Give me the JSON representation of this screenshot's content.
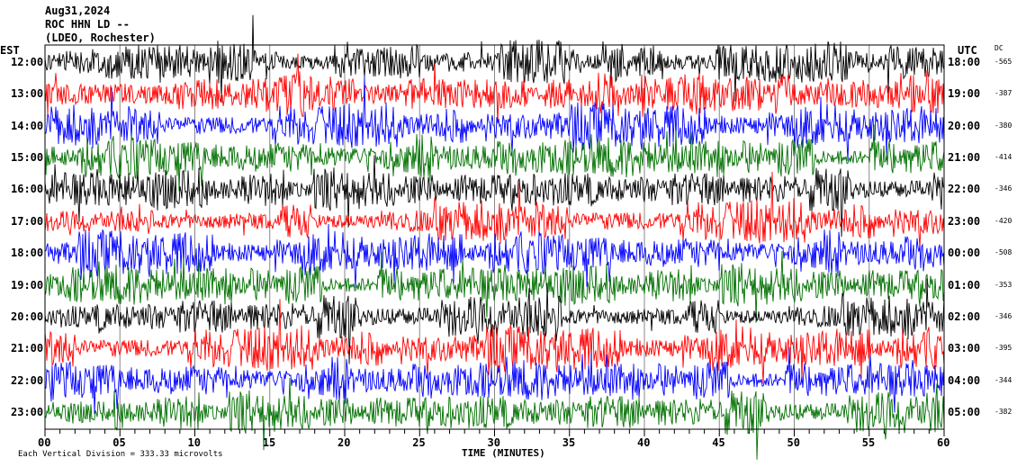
{
  "header": {
    "date": "Aug31,2024",
    "station": "ROC HHN LD --",
    "network": "(LDEO, Rochester)"
  },
  "left_axis_title": "EST",
  "right_axis_title": "UTC",
  "dc_title": "DC",
  "footer": {
    "scale_note": "Each Vertical Division =  333.33 microvolts"
  },
  "chart_data": {
    "type": "line",
    "title": "ROC HHN LD -- (LDEO, Rochester) Aug31,2024",
    "xlabel": "TIME (MINUTES)",
    "xlim": [
      0,
      60
    ],
    "x_ticks": [
      "00",
      "05",
      "10",
      "15",
      "20",
      "25",
      "30",
      "35",
      "40",
      "45",
      "50",
      "55",
      "60"
    ],
    "grid": true,
    "colors": [
      "#000000",
      "#ff0000",
      "#0000ff",
      "#007000"
    ],
    "rows": [
      {
        "est": "12:00",
        "utc": "18:00",
        "dc": "-565"
      },
      {
        "est": "13:00",
        "utc": "19:00",
        "dc": "-387"
      },
      {
        "est": "14:00",
        "utc": "20:00",
        "dc": "-380"
      },
      {
        "est": "15:00",
        "utc": "21:00",
        "dc": "-414"
      },
      {
        "est": "16:00",
        "utc": "22:00",
        "dc": "-346"
      },
      {
        "est": "17:00",
        "utc": "23:00",
        "dc": "-420"
      },
      {
        "est": "18:00",
        "utc": "00:00",
        "dc": "-508"
      },
      {
        "est": "19:00",
        "utc": "01:00",
        "dc": "-353"
      },
      {
        "est": "20:00",
        "utc": "02:00",
        "dc": "-346"
      },
      {
        "est": "21:00",
        "utc": "03:00",
        "dc": "-395"
      },
      {
        "est": "22:00",
        "utc": "04:00",
        "dc": "-344"
      },
      {
        "est": "23:00",
        "utc": "05:00",
        "dc": "-382"
      }
    ]
  }
}
